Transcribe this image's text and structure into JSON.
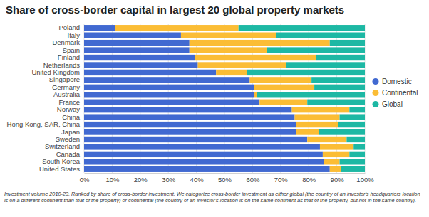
{
  "chart_data": {
    "type": "bar",
    "title": "Share of cross-border capital in largest 20 global property markets",
    "orientation": "horizontal",
    "stacked": true,
    "grid": true,
    "legend": "right",
    "categories": [
      "Poland",
      "Italy",
      "Denmark",
      "Spain",
      "Finland",
      "Netherlands",
      "United Kingdom",
      "Singapore",
      "Germany",
      "Australia",
      "France",
      "Norway",
      "China",
      "Hong Kong, SAR, China",
      "Japan",
      "Sweden",
      "Switzerland",
      "Canada",
      "South Korea",
      "United States"
    ],
    "series": [
      {
        "name": "Domestic",
        "color": "#4169d1",
        "values": [
          11,
          34.5,
          37.5,
          37.5,
          39.5,
          40.5,
          47,
          59,
          60.5,
          60.5,
          62.5,
          74,
          75,
          75.5,
          75.5,
          79.5,
          84,
          85,
          85.5,
          87.5
        ]
      },
      {
        "name": "Continental",
        "color": "#fbbd35",
        "values": [
          44,
          34,
          50,
          27.5,
          43,
          31.5,
          11,
          22,
          21.5,
          1,
          17,
          20.5,
          16,
          15,
          8,
          14,
          12,
          9.5,
          5.5,
          4
        ]
      },
      {
        "name": "Global",
        "color": "#1db8a4",
        "values": [
          45,
          31.5,
          12.5,
          35,
          17.5,
          28,
          42,
          19,
          18,
          38.5,
          20.5,
          5.5,
          9,
          9.5,
          16.5,
          6.5,
          4,
          5.5,
          9,
          8.5
        ]
      }
    ],
    "xlim": [
      0,
      100
    ],
    "xticks": [
      {
        "value": 0,
        "label": "0%"
      },
      {
        "value": 10,
        "label": "10%"
      },
      {
        "value": 20,
        "label": "20%"
      },
      {
        "value": 30,
        "label": "30%"
      },
      {
        "value": 40,
        "label": "40%"
      },
      {
        "value": 50,
        "label": "50%"
      },
      {
        "value": 60,
        "label": "60%"
      },
      {
        "value": 70,
        "label": "70%"
      },
      {
        "value": 80,
        "label": "80%"
      },
      {
        "value": 90,
        "label": "90%"
      },
      {
        "value": 100,
        "label": "100%"
      }
    ],
    "annotations": [
      "Investment volume 2010-23. Ranked by share of cross-border investment. We categorize cross-border investment as either global (the country of an investor's headquarters location is on a different continent than that of the property) or continental (the country of an investor's location is on the same continent as that of the property, but not in the same country)."
    ]
  }
}
